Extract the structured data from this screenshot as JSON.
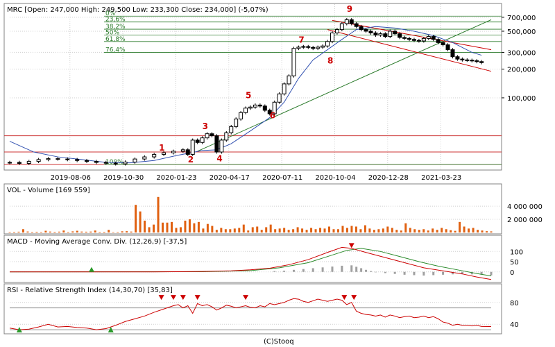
{
  "footer": "(C)Stooq",
  "price_panel": {
    "title": "MRC [Open: 247,000  High: 249,500  Low: 233,300  Close: 234,000] (-5,07%)"
  },
  "volume_panel": {
    "title": "VOL - Volume [169 559]"
  },
  "macd_panel": {
    "title": "MACD - Moving Average Conv. Div. (12,26,9) [-37,5]"
  },
  "rsi_panel": {
    "title": "RSI - Relative Strength Index (14,30,70) [35,83]"
  },
  "colors": {
    "frame": "#808080",
    "grid": "#cfcfcf",
    "candle": "#000000",
    "ma": "#3050b0",
    "fib": "#2a7a2a",
    "channel": "#cc0000",
    "support": "#cc3333",
    "volume": "#e06010",
    "macd_line": "#cc0000",
    "signal_line": "#2a8a2a",
    "histogram": "#a0a0a0",
    "rsi": "#cc0000",
    "marker_up": "#2a9a2a",
    "marker_down": "#cc0000"
  },
  "chart_data": [
    {
      "type": "candlestick",
      "name": "price",
      "x_ticks": [
        "2019-08-06",
        "2019-10-30",
        "2020-01-23",
        "2020-04-17",
        "2020-07-11",
        "2020-10-04",
        "2020-12-28",
        "2021-03-23"
      ],
      "y_scale": "log",
      "y_ticks": [
        100000,
        200000,
        300000,
        500000,
        700000
      ],
      "y_tick_labels": [
        "100,000",
        "200,000",
        "300,000",
        "500,000",
        "700,000"
      ],
      "fib_levels": [
        {
          "label": "23,6%",
          "value": 625000
        },
        {
          "label": "38,2%",
          "value": 525000
        },
        {
          "label": "50%",
          "value": 455000
        },
        {
          "label": "61,8%",
          "value": 390000
        },
        {
          "label": "76,4%",
          "value": 300000
        },
        {
          "label": "0%",
          "value": 720000
        },
        {
          "label": "100%",
          "value": 20000
        }
      ],
      "support_lines": [
        40000,
        27000,
        20000
      ],
      "wave_labels": [
        {
          "label": "1",
          "t": 0.31,
          "v": 28000
        },
        {
          "label": "2",
          "t": 0.37,
          "v": 21000
        },
        {
          "label": "3",
          "t": 0.4,
          "v": 47000
        },
        {
          "label": "4",
          "t": 0.43,
          "v": 21500
        },
        {
          "label": "5",
          "t": 0.49,
          "v": 99000
        },
        {
          "label": "6",
          "t": 0.54,
          "v": 61000
        },
        {
          "label": "7",
          "t": 0.6,
          "v": 380000
        },
        {
          "label": "8",
          "t": 0.66,
          "v": 230000
        },
        {
          "label": "9",
          "t": 0.7,
          "v": 800000
        }
      ],
      "series_close": [
        [
          0.0,
          21000
        ],
        [
          0.02,
          20500
        ],
        [
          0.04,
          21500
        ],
        [
          0.06,
          22500
        ],
        [
          0.08,
          23000
        ],
        [
          0.1,
          22800
        ],
        [
          0.12,
          22500
        ],
        [
          0.14,
          22000
        ],
        [
          0.16,
          21500
        ],
        [
          0.18,
          21000
        ],
        [
          0.2,
          20600
        ],
        [
          0.22,
          20300
        ],
        [
          0.24,
          21200
        ],
        [
          0.26,
          22800
        ],
        [
          0.28,
          24000
        ],
        [
          0.3,
          25500
        ],
        [
          0.32,
          26500
        ],
        [
          0.34,
          27500
        ],
        [
          0.36,
          28500
        ],
        [
          0.37,
          25500
        ],
        [
          0.38,
          36000
        ],
        [
          0.39,
          34000
        ],
        [
          0.4,
          38000
        ],
        [
          0.41,
          42000
        ],
        [
          0.42,
          40000
        ],
        [
          0.43,
          27000
        ],
        [
          0.44,
          36000
        ],
        [
          0.45,
          43000
        ],
        [
          0.46,
          50000
        ],
        [
          0.47,
          60000
        ],
        [
          0.48,
          70000
        ],
        [
          0.49,
          78000
        ],
        [
          0.5,
          80000
        ],
        [
          0.51,
          84000
        ],
        [
          0.52,
          82000
        ],
        [
          0.53,
          74000
        ],
        [
          0.54,
          68000
        ],
        [
          0.55,
          90000
        ],
        [
          0.56,
          110000
        ],
        [
          0.57,
          140000
        ],
        [
          0.58,
          170000
        ],
        [
          0.59,
          330000
        ],
        [
          0.6,
          340000
        ],
        [
          0.61,
          345000
        ],
        [
          0.62,
          338000
        ],
        [
          0.63,
          330000
        ],
        [
          0.64,
          340000
        ],
        [
          0.65,
          350000
        ],
        [
          0.66,
          390000
        ],
        [
          0.67,
          480000
        ],
        [
          0.68,
          520000
        ],
        [
          0.69,
          600000
        ],
        [
          0.7,
          660000
        ],
        [
          0.71,
          600000
        ],
        [
          0.72,
          560000
        ],
        [
          0.73,
          520000
        ],
        [
          0.74,
          500000
        ],
        [
          0.75,
          480000
        ],
        [
          0.76,
          455000
        ],
        [
          0.77,
          470000
        ],
        [
          0.78,
          440000
        ],
        [
          0.79,
          500000
        ],
        [
          0.8,
          470000
        ],
        [
          0.81,
          430000
        ],
        [
          0.82,
          420000
        ],
        [
          0.83,
          410000
        ],
        [
          0.84,
          400000
        ],
        [
          0.85,
          395000
        ],
        [
          0.86,
          420000
        ],
        [
          0.87,
          440000
        ],
        [
          0.88,
          410000
        ],
        [
          0.89,
          380000
        ],
        [
          0.9,
          360000
        ],
        [
          0.91,
          320000
        ],
        [
          0.92,
          270000
        ],
        [
          0.93,
          255000
        ],
        [
          0.94,
          250000
        ],
        [
          0.95,
          248000
        ],
        [
          0.96,
          245000
        ],
        [
          0.97,
          240000
        ],
        [
          0.98,
          234000
        ]
      ],
      "moving_average": [
        [
          0.0,
          35000
        ],
        [
          0.05,
          27000
        ],
        [
          0.1,
          24000
        ],
        [
          0.15,
          22500
        ],
        [
          0.2,
          21000
        ],
        [
          0.25,
          20800
        ],
        [
          0.3,
          22000
        ],
        [
          0.35,
          25000
        ],
        [
          0.4,
          28000
        ],
        [
          0.43,
          28500
        ],
        [
          0.46,
          33000
        ],
        [
          0.5,
          45000
        ],
        [
          0.54,
          62000
        ],
        [
          0.57,
          90000
        ],
        [
          0.6,
          160000
        ],
        [
          0.63,
          250000
        ],
        [
          0.66,
          320000
        ],
        [
          0.69,
          410000
        ],
        [
          0.72,
          520000
        ],
        [
          0.76,
          560000
        ],
        [
          0.8,
          540000
        ],
        [
          0.84,
          500000
        ],
        [
          0.88,
          450000
        ],
        [
          0.92,
          380000
        ],
        [
          0.96,
          300000
        ],
        [
          0.98,
          280000
        ]
      ],
      "trend_line": [
        [
          0.39,
          27500
        ],
        [
          1.0,
          660000
        ]
      ],
      "channel_upper": [
        [
          0.67,
          650000
        ],
        [
          1.0,
          320000
        ]
      ],
      "channel_lower": [
        [
          0.66,
          520000
        ],
        [
          1.0,
          190000
        ]
      ]
    },
    {
      "type": "bar",
      "name": "volume",
      "y_ticks": [
        2000000,
        4000000
      ],
      "y_tick_labels": [
        "2 000 000",
        "4 000 000"
      ],
      "values": [
        80000,
        90000,
        120000,
        500000,
        150000,
        90000,
        110000,
        80000,
        260000,
        140000,
        100000,
        130000,
        300000,
        90000,
        170000,
        260000,
        140000,
        120000,
        140000,
        300000,
        90000,
        100000,
        400000,
        70000,
        80000,
        180000,
        200000,
        140000,
        4200000,
        3200000,
        1800000,
        800000,
        1200000,
        5400000,
        1500000,
        1500000,
        1600000,
        700000,
        800000,
        1800000,
        2000000,
        1400000,
        1600000,
        600000,
        1300000,
        1000000,
        400000,
        700000,
        500000,
        500000,
        600000,
        700000,
        1200000,
        300000,
        800000,
        900000,
        400000,
        800000,
        1200000,
        500000,
        600000,
        700000,
        400000,
        500000,
        800000,
        600000,
        400000,
        700000,
        500000,
        700000,
        600000,
        900000,
        500000,
        500000,
        1000000,
        700000,
        1000000,
        900000,
        500000,
        1100000,
        600000,
        400000,
        500000,
        600000,
        900000,
        700000,
        400000,
        300000,
        1400000,
        700000,
        500000,
        400000,
        500000,
        300000,
        600000,
        400000,
        700000,
        500000,
        350000,
        250000,
        1600000,
        900000,
        600000,
        700000,
        400000,
        300000,
        200000,
        170000
      ]
    },
    {
      "type": "line",
      "name": "macd",
      "y_ticks": [
        0,
        50,
        100
      ],
      "y_tick_labels": [
        "0",
        "50",
        "100"
      ],
      "series": [
        {
          "values_macd": [
            [
              0.0,
              0
            ],
            [
              0.3,
              0
            ],
            [
              0.4,
              2
            ],
            [
              0.46,
              5
            ],
            [
              0.5,
              10
            ],
            [
              0.54,
              18
            ],
            [
              0.58,
              35
            ],
            [
              0.62,
              60
            ],
            [
              0.66,
              95
            ],
            [
              0.69,
              120
            ],
            [
              0.71,
              115
            ],
            [
              0.74,
              95
            ],
            [
              0.78,
              70
            ],
            [
              0.82,
              45
            ],
            [
              0.86,
              20
            ],
            [
              0.9,
              5
            ],
            [
              0.94,
              -10
            ],
            [
              0.97,
              -25
            ],
            [
              1.0,
              -37.5
            ]
          ]
        },
        {
          "values_signal": [
            [
              0.0,
              0
            ],
            [
              0.4,
              1
            ],
            [
              0.5,
              6
            ],
            [
              0.56,
              20
            ],
            [
              0.62,
              45
            ],
            [
              0.66,
              75
            ],
            [
              0.7,
              105
            ],
            [
              0.73,
              115
            ],
            [
              0.77,
              100
            ],
            [
              0.81,
              75
            ],
            [
              0.85,
              50
            ],
            [
              0.89,
              28
            ],
            [
              0.93,
              10
            ],
            [
              0.97,
              -8
            ],
            [
              1.0,
              -20
            ]
          ]
        }
      ],
      "histogram": [
        [
          0.55,
          4
        ],
        [
          0.57,
          6
        ],
        [
          0.59,
          10
        ],
        [
          0.61,
          14
        ],
        [
          0.63,
          18
        ],
        [
          0.65,
          22
        ],
        [
          0.67,
          26
        ],
        [
          0.69,
          30
        ],
        [
          0.71,
          32
        ],
        [
          0.72,
          25
        ],
        [
          0.73,
          18
        ],
        [
          0.74,
          10
        ],
        [
          0.75,
          4
        ],
        [
          0.76,
          -2
        ],
        [
          0.78,
          -6
        ],
        [
          0.8,
          -10
        ],
        [
          0.82,
          -14
        ],
        [
          0.84,
          -16
        ],
        [
          0.86,
          -18
        ],
        [
          0.88,
          -16
        ],
        [
          0.9,
          -14
        ],
        [
          0.92,
          -12
        ],
        [
          0.94,
          -10
        ],
        [
          0.96,
          -12
        ],
        [
          0.98,
          -14
        ],
        [
          1.0,
          -17
        ]
      ],
      "markers": [
        {
          "t": 0.17,
          "kind": "up"
        },
        {
          "t": 0.71,
          "kind": "down"
        }
      ]
    },
    {
      "type": "line",
      "name": "rsi",
      "y_ticks": [
        40,
        80
      ],
      "y_tick_labels": [
        "40",
        "80"
      ],
      "levels": [
        30,
        70
      ],
      "values": [
        [
          0.0,
          33
        ],
        [
          0.02,
          30
        ],
        [
          0.04,
          31
        ],
        [
          0.06,
          35
        ],
        [
          0.08,
          40
        ],
        [
          0.1,
          35
        ],
        [
          0.12,
          36
        ],
        [
          0.14,
          34
        ],
        [
          0.16,
          33
        ],
        [
          0.18,
          30
        ],
        [
          0.2,
          32
        ],
        [
          0.22,
          38
        ],
        [
          0.24,
          45
        ],
        [
          0.26,
          50
        ],
        [
          0.28,
          55
        ],
        [
          0.3,
          62
        ],
        [
          0.32,
          68
        ],
        [
          0.34,
          74
        ],
        [
          0.35,
          76
        ],
        [
          0.36,
          70
        ],
        [
          0.37,
          74
        ],
        [
          0.38,
          60
        ],
        [
          0.39,
          78
        ],
        [
          0.4,
          74
        ],
        [
          0.41,
          76
        ],
        [
          0.42,
          72
        ],
        [
          0.43,
          66
        ],
        [
          0.44,
          70
        ],
        [
          0.45,
          75
        ],
        [
          0.46,
          73
        ],
        [
          0.47,
          70
        ],
        [
          0.48,
          72
        ],
        [
          0.49,
          74
        ],
        [
          0.5,
          71
        ],
        [
          0.51,
          70
        ],
        [
          0.52,
          74
        ],
        [
          0.53,
          72
        ],
        [
          0.54,
          78
        ],
        [
          0.55,
          76
        ],
        [
          0.56,
          78
        ],
        [
          0.57,
          80
        ],
        [
          0.58,
          84
        ],
        [
          0.59,
          87
        ],
        [
          0.6,
          86
        ],
        [
          0.61,
          82
        ],
        [
          0.62,
          80
        ],
        [
          0.63,
          83
        ],
        [
          0.64,
          86
        ],
        [
          0.65,
          84
        ],
        [
          0.66,
          82
        ],
        [
          0.67,
          84
        ],
        [
          0.68,
          86
        ],
        [
          0.69,
          84
        ],
        [
          0.7,
          76
        ],
        [
          0.71,
          80
        ],
        [
          0.72,
          64
        ],
        [
          0.73,
          60
        ],
        [
          0.74,
          58
        ],
        [
          0.75,
          57
        ],
        [
          0.76,
          55
        ],
        [
          0.77,
          57
        ],
        [
          0.78,
          53
        ],
        [
          0.79,
          57
        ],
        [
          0.8,
          55
        ],
        [
          0.81,
          52
        ],
        [
          0.82,
          54
        ],
        [
          0.83,
          55
        ],
        [
          0.84,
          52
        ],
        [
          0.85,
          53
        ],
        [
          0.86,
          55
        ],
        [
          0.87,
          52
        ],
        [
          0.88,
          54
        ],
        [
          0.89,
          50
        ],
        [
          0.9,
          44
        ],
        [
          0.91,
          42
        ],
        [
          0.92,
          38
        ],
        [
          0.93,
          40
        ],
        [
          0.94,
          38
        ],
        [
          0.95,
          38
        ],
        [
          0.96,
          37
        ],
        [
          0.97,
          38
        ],
        [
          0.98,
          36
        ],
        [
          1.0,
          35.8
        ]
      ],
      "markers": [
        {
          "t": 0.02,
          "kind": "up"
        },
        {
          "t": 0.21,
          "kind": "up"
        },
        {
          "t": 0.315,
          "kind": "down"
        },
        {
          "t": 0.34,
          "kind": "down"
        },
        {
          "t": 0.36,
          "kind": "down"
        },
        {
          "t": 0.39,
          "kind": "down"
        },
        {
          "t": 0.49,
          "kind": "down"
        },
        {
          "t": 0.695,
          "kind": "down"
        },
        {
          "t": 0.715,
          "kind": "down"
        }
      ]
    }
  ]
}
